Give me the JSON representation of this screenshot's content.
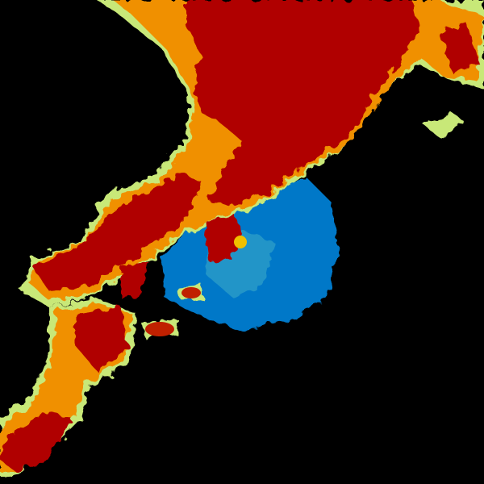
{
  "colors": {
    "background": "#000000",
    "heavy": "#b00000",
    "strong": "#e04000",
    "moderate": "#f0a000",
    "light": "#f0e060",
    "fringe": "#a0e090",
    "clutter_blue": "#0078c8",
    "clutter_light": "#40a0d8"
  }
}
